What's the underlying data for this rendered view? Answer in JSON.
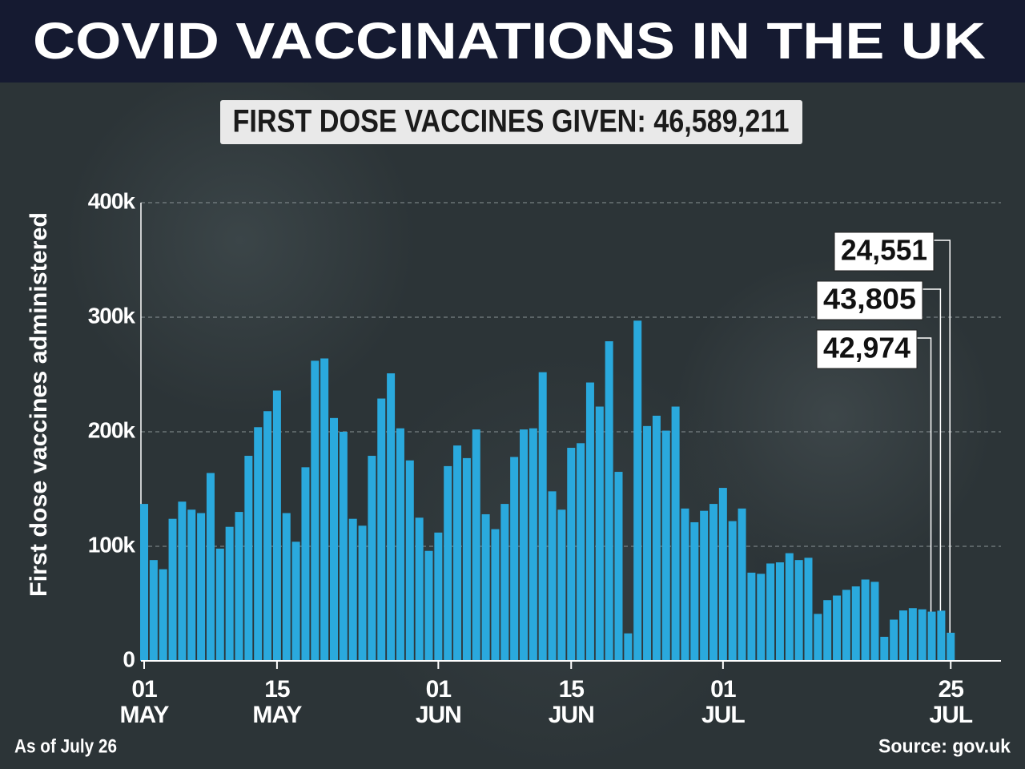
{
  "chart_data": {
    "type": "bar",
    "title": "COVID VACCINATIONS IN THE UK",
    "subtitle": "FIRST DOSE VACCINES GIVEN: 46,589,211",
    "y_label": "First dose vaccines administered",
    "note": "As of July 26",
    "source": "Source: gov.uk",
    "color": "#2aa9dd",
    "categories": [
      "01\nMAY",
      null,
      null,
      null,
      null,
      null,
      null,
      null,
      null,
      null,
      null,
      null,
      null,
      null,
      "15\nMAY",
      null,
      null,
      null,
      null,
      null,
      null,
      null,
      null,
      null,
      null,
      null,
      null,
      null,
      null,
      null,
      null,
      "01\nJUN",
      null,
      null,
      null,
      null,
      null,
      null,
      null,
      null,
      null,
      null,
      null,
      null,
      null,
      "15\nJUN",
      null,
      null,
      null,
      null,
      null,
      null,
      null,
      null,
      null,
      null,
      null,
      null,
      null,
      null,
      null,
      "01\nJUL",
      null,
      null,
      null,
      null,
      null,
      null,
      null,
      null,
      null,
      null,
      null,
      null,
      null,
      null,
      null,
      null,
      null,
      null,
      null,
      null,
      null,
      null,
      null,
      "25\nJUL"
    ],
    "values": [
      137000,
      88000,
      80000,
      124000,
      139000,
      132000,
      129000,
      164000,
      98000,
      117000,
      130000,
      179000,
      204000,
      218000,
      236000,
      129000,
      104000,
      169000,
      262000,
      264000,
      212000,
      200000,
      124000,
      118000,
      179000,
      229000,
      251000,
      203000,
      175000,
      125000,
      96000,
      112000,
      170000,
      188000,
      177000,
      202000,
      128000,
      115000,
      137000,
      178000,
      202000,
      203000,
      252000,
      148000,
      132000,
      186000,
      190000,
      243000,
      222000,
      279000,
      165000,
      24000,
      297000,
      205000,
      214000,
      201000,
      222000,
      133000,
      121000,
      131000,
      137000,
      151000,
      122000,
      133000,
      77000,
      76000,
      85000,
      86000,
      94000,
      88000,
      90000,
      41000,
      53000,
      57000,
      62000,
      65000,
      71000,
      69000,
      21000,
      36000,
      44000,
      46000,
      45000,
      42974,
      43805,
      24551
    ],
    "value_labels": [
      null,
      null,
      null,
      null,
      null,
      null,
      null,
      null,
      null,
      null,
      null,
      null,
      null,
      null,
      null,
      null,
      null,
      null,
      null,
      null,
      null,
      null,
      null,
      null,
      null,
      null,
      null,
      null,
      null,
      null,
      null,
      null,
      null,
      null,
      null,
      null,
      null,
      null,
      null,
      null,
      null,
      null,
      null,
      null,
      null,
      null,
      null,
      null,
      null,
      null,
      null,
      null,
      null,
      null,
      null,
      null,
      null,
      null,
      null,
      null,
      null,
      null,
      null,
      null,
      null,
      null,
      null,
      null,
      null,
      null,
      null,
      null,
      null,
      null,
      null,
      null,
      null,
      null,
      null,
      null,
      null,
      null,
      null,
      "42,974",
      "43,805",
      "24,551"
    ],
    "ylim": [
      0,
      400000
    ],
    "yticks": [
      0,
      {
        "value": 100000,
        "label": "100k"
      },
      {
        "value": 200000,
        "label": "200k"
      },
      {
        "value": 300000,
        "label": "300k"
      },
      {
        "value": 400000,
        "label": "400k"
      }
    ],
    "grid": true
  }
}
